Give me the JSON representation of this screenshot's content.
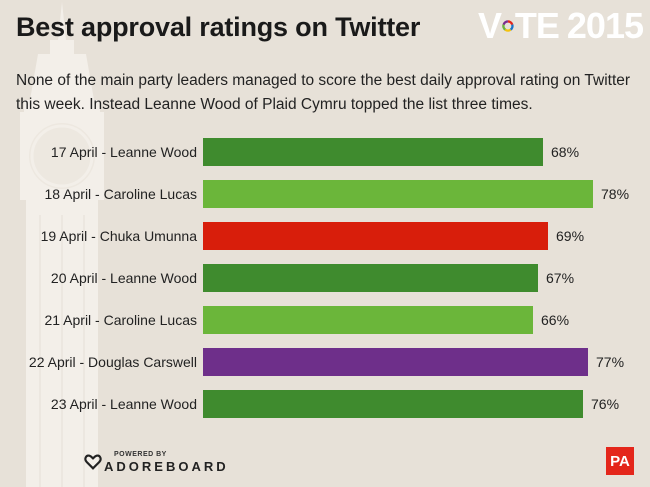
{
  "header": {
    "title": "Best approval ratings on Twitter",
    "subtitle": "None of the main party leaders managed to score the best daily approval rating on Twitter this week. Instead Leanne Wood of Plaid Cymru topped the list three times."
  },
  "logo": {
    "vote_v": "V",
    "vote_te": "TE",
    "year": "2015",
    "ring_colors": [
      "#e4261b",
      "#1a73c9",
      "#f4c20d",
      "#6cb33f",
      "#7a2b8e"
    ]
  },
  "footer": {
    "powered_by": "POWERED BY",
    "brand": "ADOREBOARD",
    "pa": "PA"
  },
  "chart_data": {
    "type": "bar",
    "orientation": "horizontal",
    "title": "Best approval ratings on Twitter",
    "categories": [
      "17 April - Leanne Wood",
      "18 April - Caroline Lucas",
      "19 April - Chuka Umunna",
      "20 April - Leanne Wood",
      "21 April - Caroline Lucas",
      "22 April - Douglas Carswell",
      "23 April - Leanne Wood"
    ],
    "values": [
      68,
      78,
      69,
      67,
      66,
      77,
      76
    ],
    "value_labels": [
      "68%",
      "78%",
      "69%",
      "67%",
      "66%",
      "77%",
      "76%"
    ],
    "colors": [
      "#3f8b2e",
      "#6bb63a",
      "#d81e0b",
      "#3f8b2e",
      "#6bb63a",
      "#6e2f8a",
      "#3f8b2e"
    ],
    "xlim": [
      0,
      100
    ],
    "xlabel": "",
    "ylabel": "",
    "grid": false
  }
}
